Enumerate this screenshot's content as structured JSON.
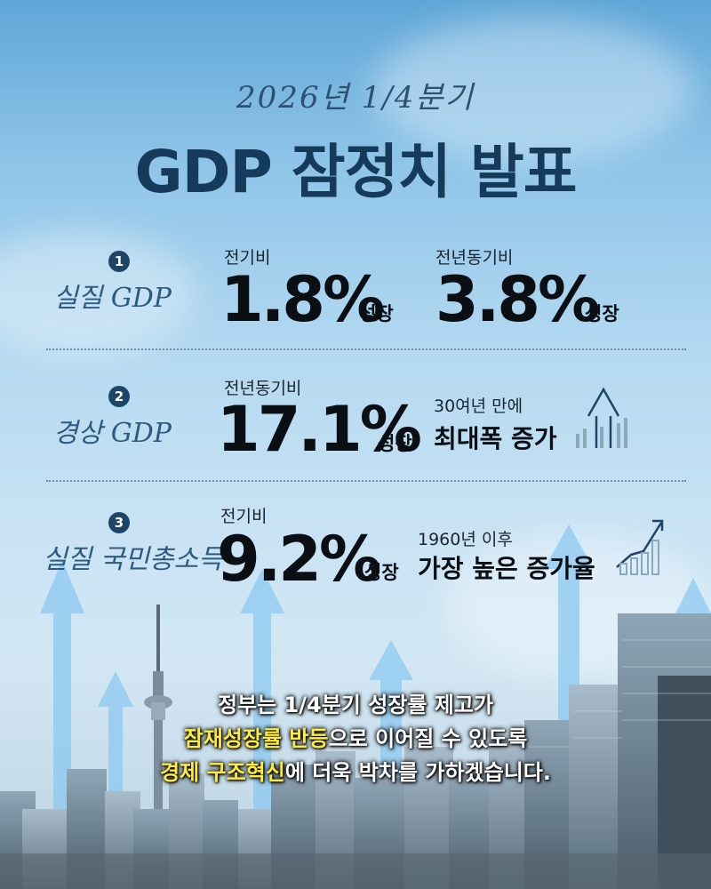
{
  "header": {
    "subtitle": "2026년 1/4분기",
    "title": "GDP 잠정치 발표"
  },
  "rows": [
    {
      "number": "1",
      "label": "실질 GDP",
      "col1_label": "전기비",
      "col1_value": "1.8%",
      "col1_suffix": "성장",
      "col2_label": "전년동기비",
      "col2_value": "3.8%",
      "col2_suffix": "성장"
    },
    {
      "number": "2",
      "label": "경상 GDP",
      "col1_label": "전년동기비",
      "col1_value": "17.1%",
      "col1_suffix": "성장",
      "note_small": "30여년 만에",
      "note_big": "최대폭 증가",
      "icon": "arrow-up-bars-icon"
    },
    {
      "number": "3",
      "label": "실질 국민총소득",
      "col1_label": "전기비",
      "col1_value": "9.2%",
      "col1_suffix": "성장",
      "note_small": "1960년 이후",
      "note_big": "가장 높은 증가율",
      "icon": "growth-chart-icon"
    }
  ],
  "message": {
    "line1": "정부는 1/4분기 성장률 제고가",
    "line2_highlight": "잠재성장률 반등",
    "line2_rest": "으로 이어질 수 있도록",
    "line3_highlight": "경제 구조혁신",
    "line3_rest": "에 더욱 박차를 가하겠습니다."
  },
  "colors": {
    "title": "#163a5a",
    "highlight": "#ffec3a",
    "badge": "#1f4566"
  }
}
